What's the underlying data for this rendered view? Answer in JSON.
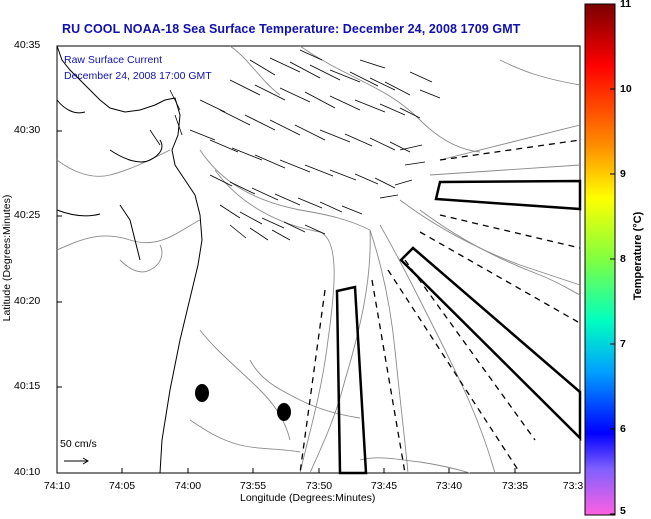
{
  "title": "RU COOL  NOAA-18  Sea Surface Temperature:  December 24, 2008 1709 GMT",
  "legend": {
    "line1": "Raw Surface Current",
    "line2": "December 24, 2008 17:00 GMT"
  },
  "axes": {
    "xlabel": "Longitude (Degrees:Minutes)",
    "ylabel": "Latitude (Degrees:Minutes)",
    "xticks": [
      "74:10",
      "74:05",
      "74:00",
      "73:55",
      "73:50",
      "73:45",
      "73:40",
      "73:35",
      "73:3"
    ],
    "yticks": [
      "40:35",
      "40:30",
      "40:25",
      "40:20",
      "40:15",
      "40:10"
    ]
  },
  "scale_arrow_label": "50 cm/s",
  "colorbar": {
    "label": "Temperature (°C)",
    "ticks": [
      "11",
      "10",
      "9",
      "8",
      "7",
      "6",
      "5"
    ],
    "min": 5,
    "max": 11
  },
  "colors": {
    "title": "#1010b0",
    "contour": "#808080",
    "coast": "#000000"
  }
}
